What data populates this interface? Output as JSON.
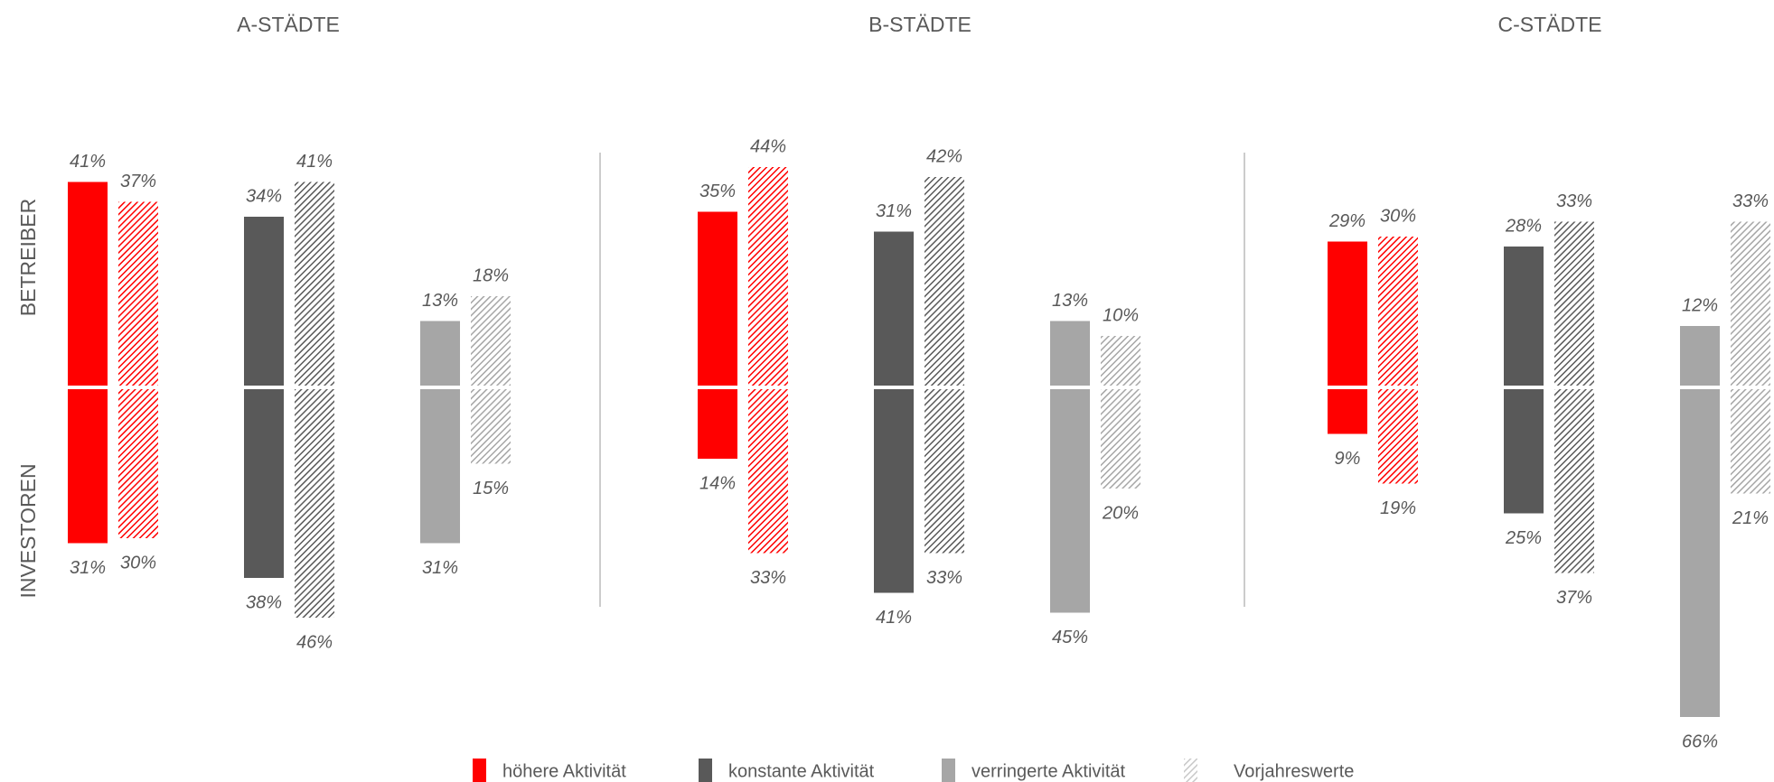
{
  "chart_data": {
    "type": "bar",
    "groups": [
      "A-STÄDTE",
      "B-STÄDTE",
      "C-STÄDTE"
    ],
    "axis_labels": [
      "BETREIBER",
      "INVESTOREN"
    ],
    "prev_name": "Vorjahreswerte",
    "prev_color": "#c8c8c8",
    "series": [
      {
        "name": "höhere Aktivität",
        "color": "#ff0000",
        "betreiber": [
          41,
          35,
          29
        ],
        "betreiber_labels": [
          "41%",
          "35%",
          "29%"
        ],
        "betreiber_prev": [
          37,
          44,
          30
        ],
        "betreiber_prev_labels": [
          "37%",
          "44%",
          "30%"
        ],
        "investoren": [
          31,
          14,
          9
        ],
        "investoren_labels": [
          "31%",
          "14%",
          "9%"
        ],
        "investoren_prev": [
          30,
          33,
          19
        ],
        "investoren_prev_labels": [
          "30%",
          "33%",
          "19%"
        ]
      },
      {
        "name": "konstante Aktivität",
        "color": "#595959",
        "betreiber": [
          34,
          31,
          28
        ],
        "betreiber_labels": [
          "34%",
          "31%",
          "28%"
        ],
        "betreiber_prev": [
          41,
          42,
          33
        ],
        "betreiber_prev_labels": [
          "41%",
          "42%",
          "33%"
        ],
        "investoren": [
          38,
          41,
          25
        ],
        "investoren_labels": [
          "38%",
          "41%",
          "25%"
        ],
        "investoren_prev": [
          46,
          33,
          37
        ],
        "investoren_prev_labels": [
          "46%",
          "33%",
          "37%"
        ]
      },
      {
        "name": "verringerte Aktivität",
        "color": "#a6a6a6",
        "betreiber": [
          13,
          13,
          12
        ],
        "betreiber_labels": [
          "13%",
          "13%",
          "12%"
        ],
        "betreiber_prev": [
          18,
          10,
          33
        ],
        "betreiber_prev_labels": [
          "18%",
          "10%",
          "33%"
        ],
        "investoren": [
          31,
          45,
          66
        ],
        "investoren_labels": [
          "31%",
          "45%",
          "66%"
        ],
        "investoren_prev": [
          15,
          20,
          21
        ],
        "investoren_prev_labels": [
          "15%",
          "20%",
          "21%"
        ]
      }
    ]
  }
}
